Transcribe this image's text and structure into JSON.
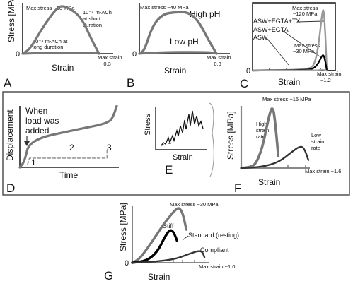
{
  "chart_data": [
    {
      "panel": "A",
      "type": "line",
      "ylabel": "Stress [MPa]",
      "xlabel": "Strain",
      "annotations": {
        "ymax": "Max stress ~50 MPa",
        "xmax_line1": "Max strain",
        "xmax_line2": "~0.3",
        "origin": "0",
        "short_l1": "10⁻⁴ m-ACh",
        "short_l2": "at short",
        "short_l3": "duration",
        "long_l1": "10⁻⁴ m-ACh at",
        "long_l2": "long duration"
      },
      "series": [
        {
          "values": [
            [
              0,
              0
            ],
            [
              0.03,
              5
            ],
            [
              0.08,
              28
            ],
            [
              0.13,
              46
            ],
            [
              0.15,
              50
            ],
            [
              0.18,
              48
            ],
            [
              0.23,
              38
            ],
            [
              0.27,
              15
            ],
            [
              0.3,
              0
            ]
          ]
        },
        {
          "values": [
            [
              0,
              0
            ],
            [
              0.05,
              0.5
            ],
            [
              0.15,
              1
            ],
            [
              0.25,
              1
            ],
            [
              0.29,
              0.5
            ],
            [
              0.3,
              0
            ]
          ]
        }
      ]
    },
    {
      "panel": "B",
      "type": "line",
      "ylabel": "",
      "xlabel": "Strain",
      "annotations": {
        "ymax": "Max stress ~40 MPa",
        "xmax_line1": "Max strain",
        "xmax_line2": "~0.3",
        "origin": "0",
        "high": "High pH",
        "low": "Low pH"
      },
      "series": [
        {
          "name": "High pH",
          "values": [
            [
              0,
              0
            ],
            [
              0.02,
              3
            ],
            [
              0.05,
              25
            ],
            [
              0.09,
              36
            ],
            [
              0.14,
              38
            ],
            [
              0.19,
              38
            ],
            [
              0.23,
              30
            ],
            [
              0.27,
              12
            ],
            [
              0.3,
              0
            ]
          ]
        },
        {
          "name": "Low pH",
          "values": [
            [
              0,
              0
            ],
            [
              0.05,
              1
            ],
            [
              0.15,
              1.5
            ],
            [
              0.25,
              1.5
            ],
            [
              0.29,
              1
            ],
            [
              0.3,
              0
            ]
          ]
        }
      ]
    },
    {
      "panel": "C",
      "type": "line",
      "ylabel": "",
      "xlabel": "Strain",
      "annotations": {
        "ymax": "Max stress",
        "ymax2": "~120 MPa",
        "mid": "Max stress",
        "mid2": "~30 MPa",
        "xmax_line1": "Max strain",
        "xmax_line2": "~1.2",
        "origin": "0"
      },
      "series": [
        {
          "name": "ASW+EGTA+TX",
          "values": [
            [
              0,
              0
            ],
            [
              0.9,
              2
            ],
            [
              1.0,
              10
            ],
            [
              1.07,
              50
            ],
            [
              1.12,
              105
            ],
            [
              1.15,
              120
            ],
            [
              1.18,
              60
            ],
            [
              1.2,
              0
            ]
          ]
        },
        {
          "name": "ASW+EGTA",
          "values": [
            [
              0,
              0
            ],
            [
              0.9,
              1
            ],
            [
              1.0,
              5
            ],
            [
              1.07,
              15
            ],
            [
              1.12,
              28
            ],
            [
              1.15,
              30
            ],
            [
              1.18,
              15
            ],
            [
              1.2,
              0
            ]
          ]
        },
        {
          "name": "ASW",
          "values": [
            [
              0,
              0
            ],
            [
              0.8,
              0.5
            ],
            [
              1.05,
              1
            ],
            [
              1.15,
              2
            ],
            [
              1.2,
              0
            ]
          ]
        }
      ]
    },
    {
      "panel": "D",
      "type": "line",
      "ylabel": "Displacement",
      "xlabel": "Time",
      "annotations": {
        "load_l1": "When",
        "load_l2": "load was",
        "load_l3": "added",
        "phase1": "1",
        "phase2": "2",
        "phase3": "3"
      },
      "series": [
        {
          "values": [
            [
              0,
              0
            ],
            [
              0.05,
              0.1
            ],
            [
              0.1,
              0.45
            ],
            [
              0.6,
              0.62
            ],
            [
              0.92,
              0.72
            ],
            [
              0.97,
              0.85
            ],
            [
              1.0,
              1.0
            ]
          ]
        },
        {
          "name": "phases",
          "values": [
            [
              0.08,
              0.05
            ],
            [
              0.1,
              0.15
            ],
            [
              0.9,
              0.15
            ],
            [
              0.9,
              0.3
            ]
          ]
        }
      ]
    },
    {
      "panel": "E",
      "type": "line",
      "ylabel": "Stress",
      "xlabel": "Strain"
    },
    {
      "panel": "F",
      "type": "line",
      "ylabel": "Stress [MPa]",
      "xlabel": "Strain",
      "annotations": {
        "ymax": "Max stress ~15 MPa",
        "xmax": "Max strain ~1.6",
        "high_l1": "High",
        "high_l2": "strain",
        "high_l3": "rate",
        "low_l1": "Low",
        "low_l2": "strain",
        "low_l3": "rate"
      },
      "series": [
        {
          "name": "High strain rate",
          "values": [
            [
              0,
              0
            ],
            [
              0.2,
              0.2
            ],
            [
              0.35,
              1
            ],
            [
              0.5,
              5
            ],
            [
              0.62,
              11
            ],
            [
              0.7,
              14.5
            ],
            [
              0.74,
              15
            ],
            [
              0.78,
              14
            ],
            [
              0.84,
              8
            ],
            [
              0.88,
              3
            ]
          ]
        },
        {
          "name": "Low strain rate",
          "values": [
            [
              0,
              0
            ],
            [
              0.5,
              0.3
            ],
            [
              0.9,
              1.5
            ],
            [
              1.2,
              4
            ],
            [
              1.4,
              5.5
            ],
            [
              1.5,
              5
            ],
            [
              1.6,
              2
            ]
          ]
        }
      ]
    },
    {
      "panel": "G",
      "type": "line",
      "ylabel": "Stress [MPa]",
      "xlabel": "Strain",
      "annotations": {
        "ymax": "Max stress ~30 MPa",
        "xmax": "Max strain ~1.0",
        "origin": "0",
        "stiff": "Stiff",
        "standard": "Standard (resting)",
        "compliant": "Compliant"
      },
      "series": [
        {
          "name": "Stiff",
          "values": [
            [
              0,
              0
            ],
            [
              0.1,
              2
            ],
            [
              0.25,
              10
            ],
            [
              0.45,
              22
            ],
            [
              0.6,
              29
            ],
            [
              0.65,
              30
            ],
            [
              0.7,
              27
            ],
            [
              0.75,
              18
            ]
          ]
        },
        {
          "name": "Standard (resting)",
          "values": [
            [
              0,
              0
            ],
            [
              0.2,
              1
            ],
            [
              0.35,
              6
            ],
            [
              0.45,
              14
            ],
            [
              0.52,
              18
            ],
            [
              0.57,
              17
            ],
            [
              0.62,
              12
            ]
          ]
        },
        {
          "name": "Compliant",
          "values": [
            [
              0,
              0
            ],
            [
              0.3,
              0.5
            ],
            [
              0.6,
              2
            ],
            [
              0.8,
              5
            ],
            [
              0.92,
              6.5
            ],
            [
              0.97,
              6
            ],
            [
              1.0,
              3
            ]
          ]
        }
      ]
    }
  ]
}
